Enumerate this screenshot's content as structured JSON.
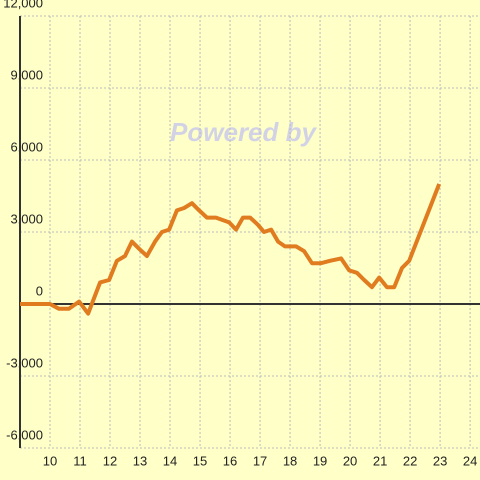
{
  "chart_data": {
    "type": "line",
    "watermark": "Powered by",
    "x": [
      9,
      10,
      10.3,
      10.63,
      10.97,
      11.27,
      11.67,
      11.97,
      12.23,
      12.5,
      12.73,
      12.97,
      13.23,
      13.5,
      13.73,
      13.97,
      14.23,
      14.47,
      14.73,
      14.97,
      15.23,
      15.53,
      15.97,
      16.2,
      16.43,
      16.67,
      16.93,
      17.13,
      17.37,
      17.6,
      17.83,
      18.2,
      18.47,
      18.73,
      19.03,
      19.33,
      19.7,
      19.97,
      20.23,
      20.47,
      20.73,
      20.97,
      21.23,
      21.47,
      21.73,
      21.97,
      22.97
    ],
    "series": [
      {
        "color": "#e07b20",
        "values": [
          0,
          0,
          -200,
          -200,
          100,
          -400,
          900,
          1000,
          1800,
          2000,
          2600,
          2300,
          2000,
          2600,
          3000,
          3100,
          3900,
          4000,
          4200,
          3900,
          3600,
          3600,
          3400,
          3100,
          3600,
          3600,
          3300,
          3000,
          3100,
          2600,
          2400,
          2400,
          2200,
          1700,
          1700,
          1800,
          1900,
          1400,
          1300,
          1000,
          700,
          1100,
          700,
          700,
          1500,
          1800,
          5000
        ]
      }
    ],
    "xlim": [
      9,
      24.33
    ],
    "xticks": [
      10,
      11,
      12,
      13,
      14,
      15,
      16,
      17,
      18,
      19,
      20,
      21,
      22,
      23,
      24
    ],
    "ylim": [
      -6000,
      12000
    ],
    "yticks": [
      {
        "value": -6000,
        "label": "-6,000"
      },
      {
        "value": -3000,
        "label": "-3,000"
      },
      0,
      {
        "value": 3000,
        "label": "3,000"
      },
      {
        "value": 6000,
        "label": "6,000"
      },
      {
        "value": 9000,
        "label": "9,000"
      },
      {
        "value": 12000,
        "label": "12,000"
      }
    ],
    "grid": true
  }
}
